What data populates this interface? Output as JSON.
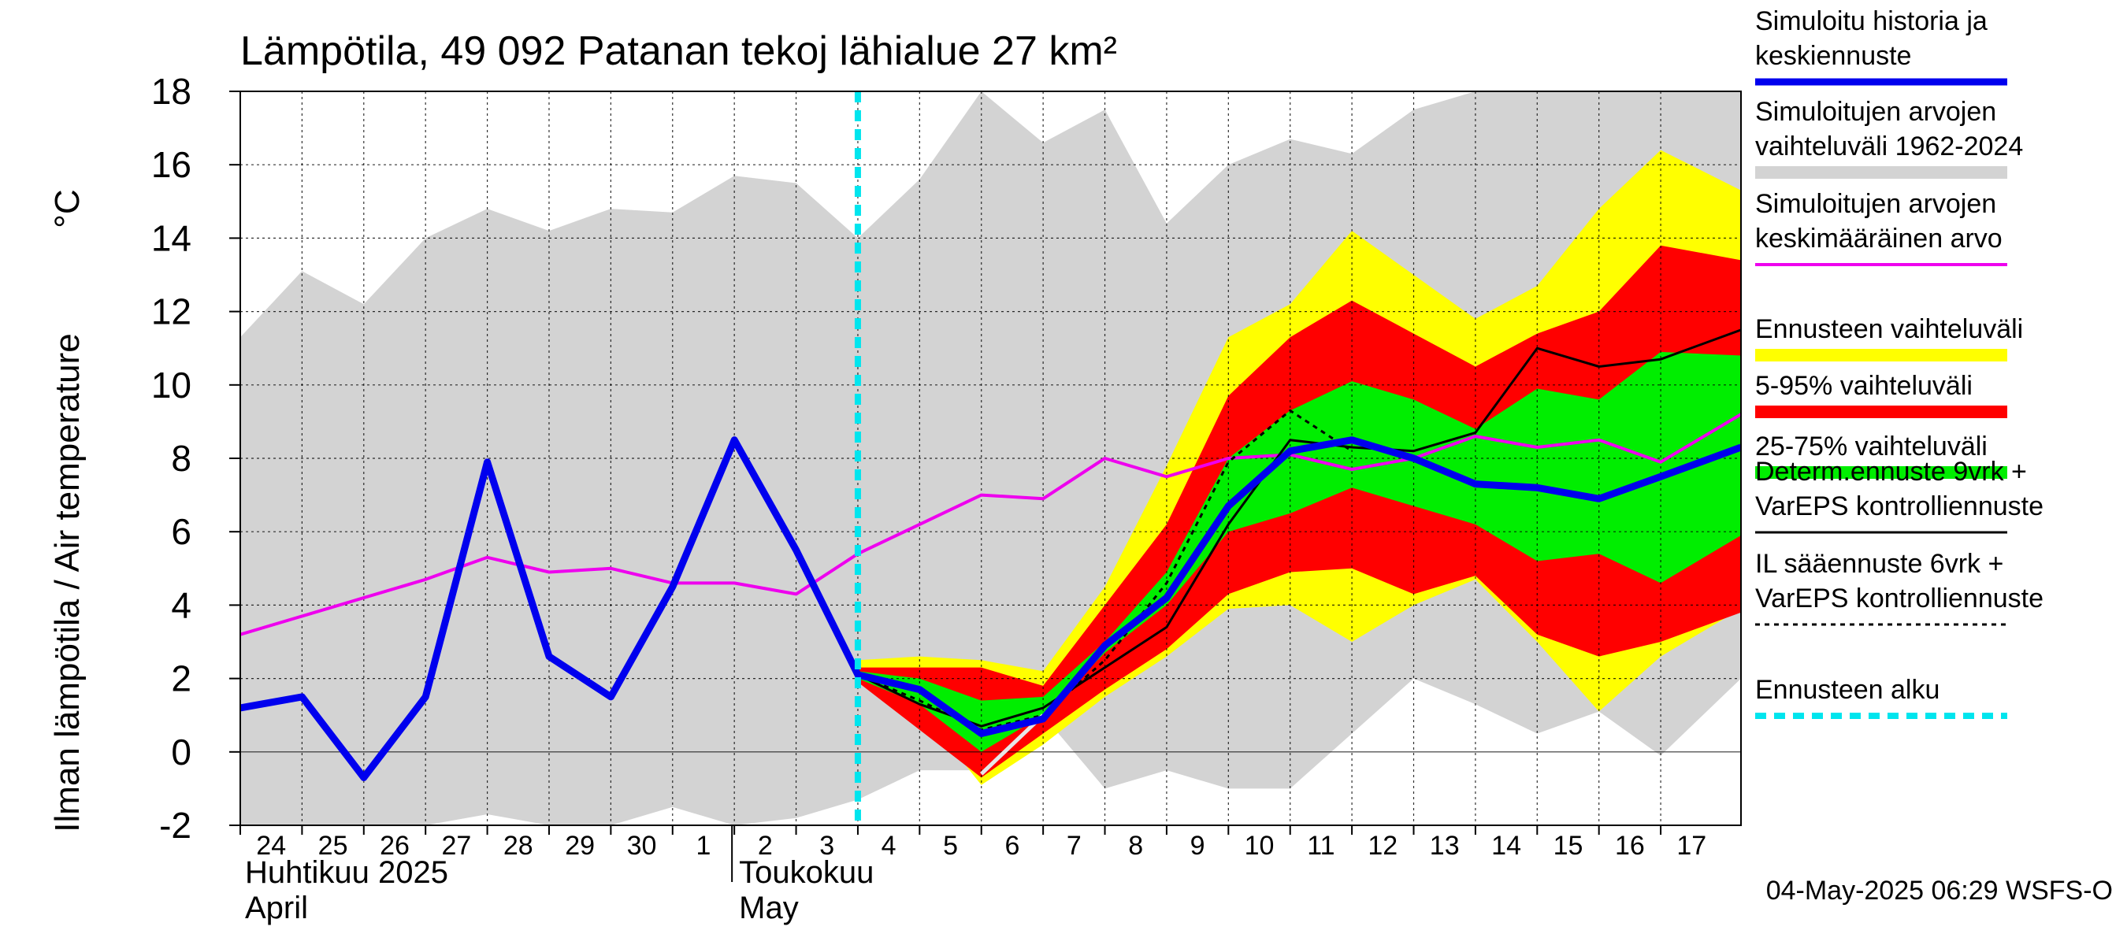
{
  "chart_data": {
    "type": "area",
    "title": "Lämpötila, 49 092 Patanan tekoj lähialue 27 km²",
    "ylabel": "Ilman lämpötila / Air temperature",
    "yunit": "°C",
    "ylim": [
      -2,
      18
    ],
    "yticks": [
      -2,
      0,
      2,
      4,
      6,
      8,
      10,
      12,
      14,
      16,
      18
    ],
    "xlim": [
      0,
      24.3
    ],
    "grid": true,
    "legend_position": "right",
    "day_labels": [
      "24",
      "25",
      "26",
      "27",
      "28",
      "29",
      "30",
      "1",
      "2",
      "3",
      "4",
      "5",
      "6",
      "7",
      "8",
      "9",
      "10",
      "11",
      "12",
      "13",
      "14",
      "15",
      "16",
      "17"
    ],
    "month_labels": [
      {
        "fi": "Huhtikuu  2025",
        "en": "April",
        "at": 0
      },
      {
        "fi": "Toukokuu",
        "en": "May",
        "at": 8
      }
    ],
    "forecast_start": 10,
    "timestamp": "04-May-2025 06:29 WSFS-O",
    "colors": {
      "history_range": "#d3d3d3",
      "ens_range": "#ffff00",
      "p5_95": "#ff0000",
      "p25_75": "#00ee00",
      "simulated": "#0000ee",
      "mean": "#ee00ee",
      "determ": "#000000",
      "il": "#000000",
      "forecast_start": "#00e5ee"
    },
    "series": {
      "history_range": {
        "x": [
          0,
          1,
          2,
          3,
          4,
          5,
          6,
          7,
          8,
          9,
          10,
          11,
          12,
          13,
          14,
          15,
          16,
          17,
          18,
          19,
          20,
          21,
          22,
          23,
          24.3
        ],
        "upper": [
          11.3,
          13.1,
          12.2,
          14.0,
          14.8,
          14.2,
          14.8,
          14.7,
          15.7,
          15.5,
          14.0,
          15.6,
          18.0,
          16.6,
          17.5,
          14.4,
          16.0,
          16.7,
          16.3,
          17.5,
          18.0,
          18.0,
          18.0,
          18.0,
          18.0
        ],
        "lower": [
          -2.0,
          -2.0,
          -2.0,
          -2.0,
          -1.7,
          -2.0,
          -2.0,
          -1.5,
          -2.0,
          -1.8,
          -1.3,
          -0.5,
          -0.5,
          1.0,
          -1.0,
          -0.5,
          -1.0,
          -1.0,
          0.5,
          2.0,
          1.3,
          0.5,
          1.1,
          -0.1,
          2.0
        ]
      },
      "ens_range": {
        "x": [
          10,
          11,
          12,
          13,
          14,
          15,
          16,
          17,
          18,
          19,
          20,
          21,
          22,
          23,
          24.3
        ],
        "upper": [
          2.5,
          2.6,
          2.5,
          2.2,
          4.5,
          7.8,
          11.3,
          12.2,
          14.2,
          13.0,
          11.8,
          12.7,
          14.8,
          16.4,
          15.3
        ],
        "lower": [
          1.9,
          1.2,
          -0.9,
          0.2,
          1.5,
          2.6,
          3.9,
          4.0,
          3.0,
          4.0,
          4.7,
          3.0,
          1.1,
          2.6,
          3.9
        ]
      },
      "p5_95": {
        "x": [
          10,
          11,
          12,
          13,
          14,
          15,
          16,
          17,
          18,
          19,
          20,
          21,
          22,
          23,
          24.3
        ],
        "upper": [
          2.3,
          2.3,
          2.3,
          1.8,
          4.0,
          6.2,
          9.7,
          11.3,
          12.3,
          11.4,
          10.5,
          11.4,
          12.0,
          13.8,
          13.4
        ],
        "lower": [
          1.9,
          0.6,
          -0.7,
          0.5,
          1.7,
          2.8,
          4.3,
          4.9,
          5.0,
          4.3,
          4.8,
          3.2,
          2.6,
          3.0,
          3.8
        ]
      },
      "p25_75": {
        "x": [
          10,
          11,
          12,
          13,
          14,
          15,
          16,
          17,
          18,
          19,
          20,
          21,
          22,
          23,
          24.3
        ],
        "upper": [
          2.2,
          2.0,
          1.4,
          1.5,
          3.0,
          4.9,
          8.0,
          9.3,
          10.1,
          9.6,
          8.8,
          9.9,
          9.6,
          10.9,
          10.8
        ],
        "lower": [
          2.0,
          1.3,
          0.0,
          1.0,
          2.7,
          4.0,
          6.0,
          6.5,
          7.2,
          6.7,
          6.2,
          5.2,
          5.4,
          4.6,
          5.9
        ]
      },
      "simulated": {
        "name": "Simuloitu historia ja keskiennuste",
        "x": [
          0,
          1,
          2,
          3,
          4,
          5,
          6,
          7,
          8,
          9,
          10,
          11,
          12,
          13,
          14,
          15,
          16,
          17,
          18,
          19,
          20,
          21,
          22,
          23,
          24.3
        ],
        "values": [
          1.2,
          1.5,
          -0.7,
          1.5,
          7.9,
          2.6,
          1.5,
          4.5,
          8.5,
          5.5,
          2.1,
          1.7,
          0.5,
          0.9,
          2.9,
          4.2,
          6.7,
          8.2,
          8.5,
          8.0,
          7.3,
          7.2,
          6.9,
          7.5,
          8.3
        ]
      },
      "mean": {
        "name": "Simuloitujen arvojen keskimääräinen arvo",
        "x": [
          0,
          1,
          2,
          3,
          4,
          5,
          6,
          7,
          8,
          9,
          10,
          11,
          12,
          13,
          14,
          15,
          16,
          17,
          18,
          19,
          20,
          21,
          22,
          23,
          24.3
        ],
        "values": [
          3.2,
          3.7,
          4.2,
          4.7,
          5.3,
          4.9,
          5.0,
          4.6,
          4.6,
          4.3,
          5.4,
          6.2,
          7.0,
          6.9,
          8.0,
          7.5,
          8.0,
          8.1,
          7.7,
          8.0,
          8.6,
          8.3,
          8.5,
          7.9,
          9.2
        ]
      },
      "determ": {
        "name": "Determ.ennuste 9vrk + VarEPS kontrolliennuste",
        "x": [
          8,
          9,
          10,
          11,
          12,
          13,
          14,
          15,
          16,
          17,
          18,
          19,
          20,
          21,
          22,
          23,
          24.3
        ],
        "values": [
          8.5,
          5.5,
          2.1,
          1.3,
          0.7,
          1.2,
          2.3,
          3.4,
          6.2,
          8.5,
          8.3,
          8.2,
          8.7,
          11.0,
          10.5,
          10.7,
          11.5
        ]
      },
      "il": {
        "name": "IL sääennuste 6vrk + VarEPS kontrolliennuste",
        "x": [
          10,
          11,
          12,
          13,
          14,
          15,
          16,
          17,
          18
        ],
        "values": [
          2.1,
          1.4,
          0.6,
          1.0,
          2.5,
          4.6,
          7.9,
          9.3,
          8.2
        ]
      },
      "gray_short": {
        "x": [
          12,
          13
        ],
        "values": [
          -0.6,
          1.0
        ]
      }
    },
    "legend": [
      {
        "key": "simulated",
        "text": [
          "Simuloitu historia ja",
          "keskiennuste"
        ],
        "style": "thick-line"
      },
      {
        "key": "history_range",
        "text": [
          "Simuloitujen arvojen",
          "vaihteluväli 1962-2024"
        ],
        "style": "band"
      },
      {
        "key": "mean",
        "text": [
          "Simuloitujen arvojen",
          "keskimääräinen arvo"
        ],
        "style": "line"
      },
      {
        "key": "ens_range",
        "text": [
          "Ennusteen vaihteluväli"
        ],
        "style": "band"
      },
      {
        "key": "p5_95",
        "text": [
          "5-95% vaihteluväli"
        ],
        "style": "band"
      },
      {
        "key": "p25_75",
        "text": [
          "25-75% vaihteluväli"
        ],
        "style": "band"
      },
      {
        "key": "determ",
        "text": [
          "Determ.ennuste 9vrk +",
          "VarEPS kontrolliennuste"
        ],
        "style": "thin-line"
      },
      {
        "key": "il",
        "text": [
          "IL sääennuste 6vrk  +",
          "  VarEPS kontrolliennuste"
        ],
        "style": "dashed-line"
      },
      {
        "key": "forecast_start",
        "text": [
          "Ennusteen alku"
        ],
        "style": "cyan-dashed"
      }
    ]
  }
}
